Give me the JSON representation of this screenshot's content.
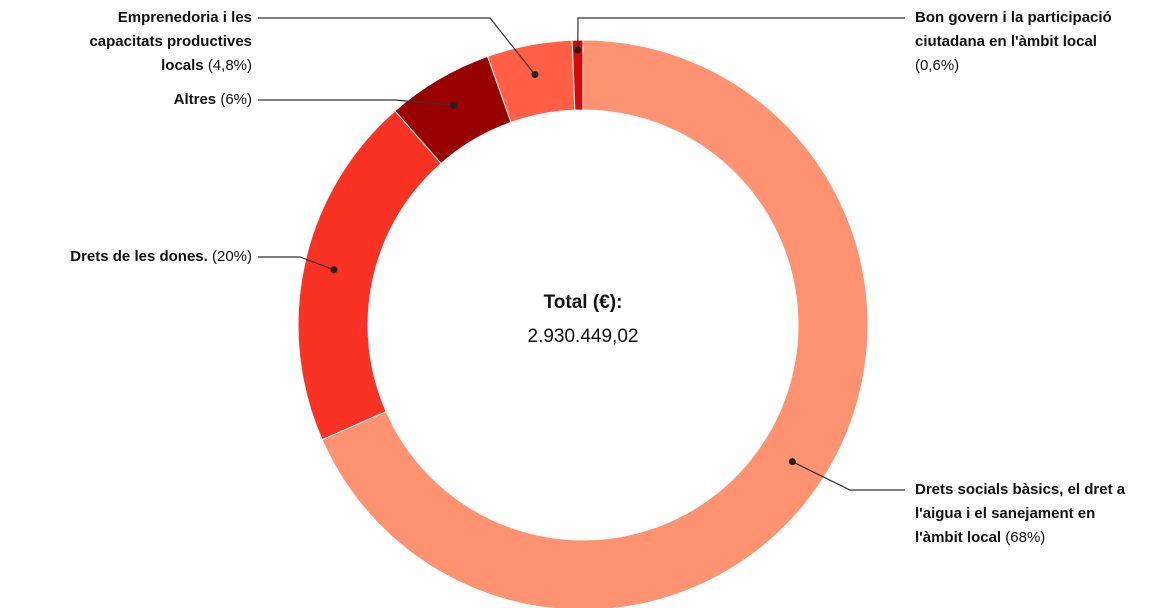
{
  "chart_data": {
    "type": "donut",
    "center_title": "Total (€):",
    "center_value": "2.930.449,02",
    "categories": [
      "Drets socials bàsics, el dret a l'aigua i el sanejament en l'àmbit local",
      "Drets de les dones.",
      "Altres",
      "Emprenedoria i les capacitats productives locals",
      "Bon govern i la participació ciutadana en l'àmbit local"
    ],
    "values": [
      68,
      20,
      6,
      4.8,
      0.6
    ],
    "value_labels": [
      "(68%)",
      "(20%)",
      "(6%)",
      "(4,8%)",
      "(0,6%)"
    ],
    "colors": [
      "#ff9270",
      "#f93223",
      "#990000",
      "#ff5f44",
      "#d40a0a"
    ]
  }
}
